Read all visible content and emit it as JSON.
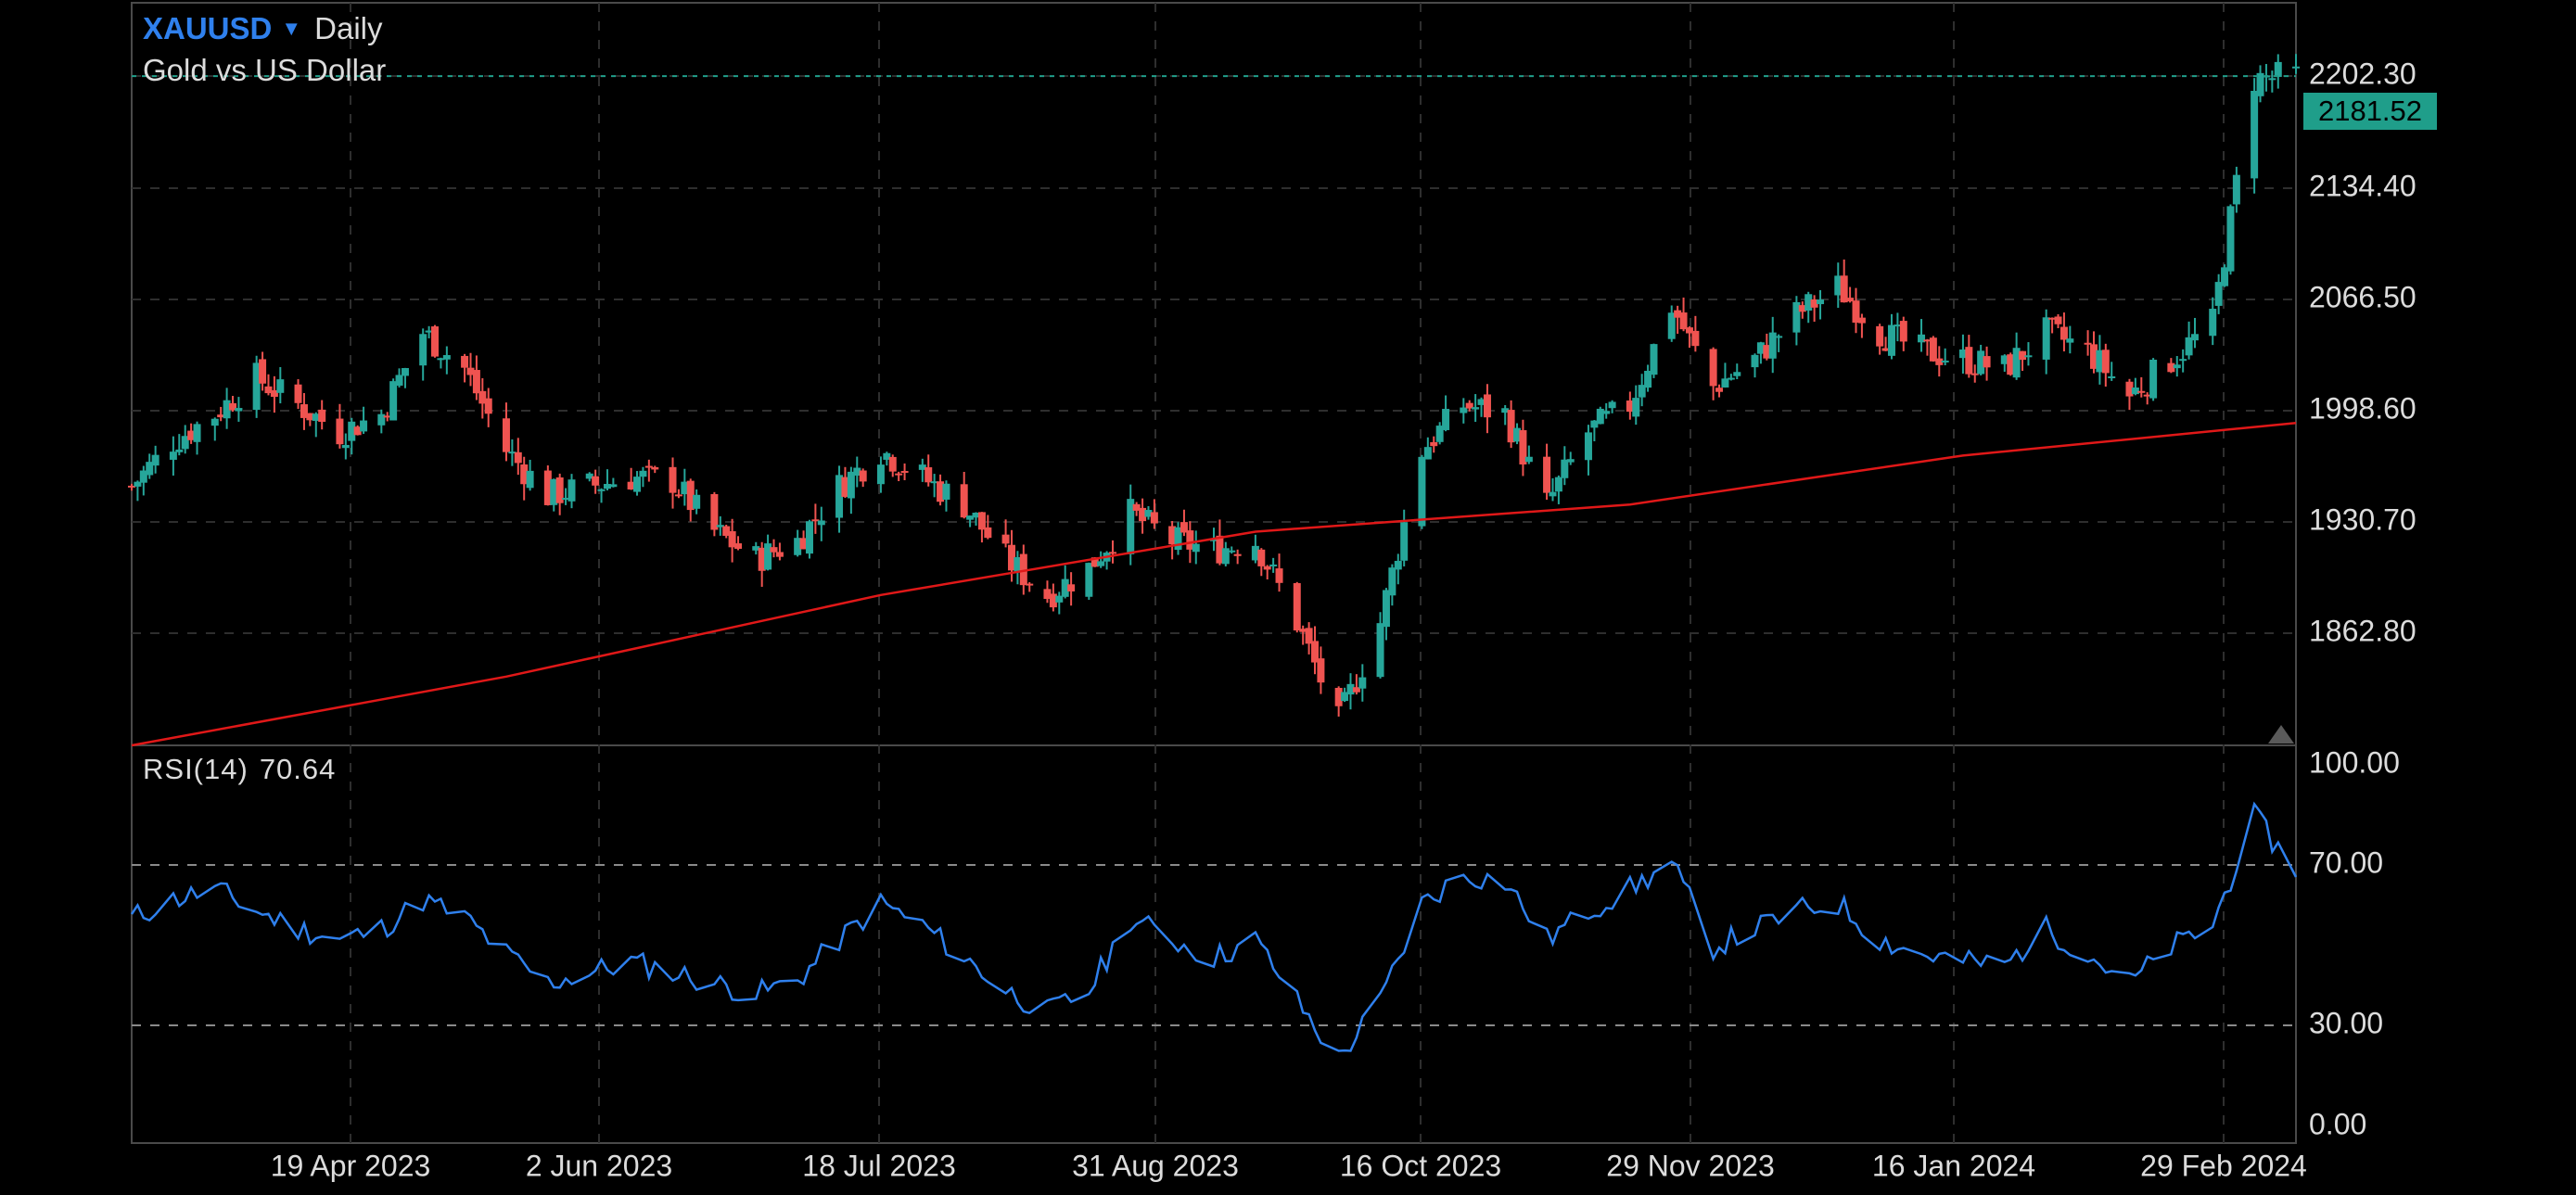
{
  "header": {
    "symbol": "XAUUSD",
    "timeframe": "Daily",
    "description": "Gold vs US Dollar"
  },
  "colors": {
    "background": "#000000",
    "frame": "#4a4a4a",
    "grid": "#2e2e2e",
    "candle_up": "#26a69a",
    "candle_down": "#ef5350",
    "moving_average": "#e01818",
    "rsi_line": "#2f80ed",
    "symbol": "#2f80ed",
    "price_badge": "#1f9e8a",
    "last_price_line": "#1f9e8a"
  },
  "current_price": {
    "label": "2181.52",
    "value": 2181.52
  },
  "chart_data": [
    {
      "type": "candlestick",
      "title": "",
      "xlabel": "",
      "ylabel": "",
      "ylim": [
        1812,
        2222
      ],
      "price_axis_ticks": [
        "2202.30",
        "2134.40",
        "2066.50",
        "1998.60",
        "1930.70",
        "1862.80"
      ],
      "date_axis_ticks": [
        "19 Apr 2023",
        "2 Jun 2023",
        "18 Jul 2023",
        "31 Aug 2023",
        "16 Oct 2023",
        "29 Nov 2023",
        "16 Jan 2024",
        "29 Feb 2024"
      ],
      "grid": true,
      "x_range": [
        "2023-03-13",
        "2024-03-11"
      ],
      "close_path": [
        [
          "2023-03-13",
          1955
        ],
        [
          "2023-03-20",
          1980
        ],
        [
          "2023-03-27",
          1995
        ],
        [
          "2023-04-03",
          2015
        ],
        [
          "2023-04-10",
          2000
        ],
        [
          "2023-04-17",
          1985
        ],
        [
          "2023-04-24",
          1995
        ],
        [
          "2023-05-01",
          2040
        ],
        [
          "2023-05-08",
          2020
        ],
        [
          "2023-05-15",
          1975
        ],
        [
          "2023-05-22",
          1950
        ],
        [
          "2023-05-29",
          1955
        ],
        [
          "2023-06-05",
          1960
        ],
        [
          "2023-06-12",
          1958
        ],
        [
          "2023-06-19",
          1930
        ],
        [
          "2023-06-26",
          1915
        ],
        [
          "2023-07-03",
          1925
        ],
        [
          "2023-07-10",
          1955
        ],
        [
          "2023-07-17",
          1975
        ],
        [
          "2023-07-24",
          1960
        ],
        [
          "2023-07-31",
          1945
        ],
        [
          "2023-08-07",
          1915
        ],
        [
          "2023-08-14",
          1895
        ],
        [
          "2023-08-21",
          1910
        ],
        [
          "2023-08-28",
          1940
        ],
        [
          "2023-09-04",
          1925
        ],
        [
          "2023-09-11",
          1920
        ],
        [
          "2023-09-18",
          1925
        ],
        [
          "2023-09-25",
          1880
        ],
        [
          "2023-10-02",
          1825
        ],
        [
          "2023-10-09",
          1880
        ],
        [
          "2023-10-16",
          1975
        ],
        [
          "2023-10-23",
          2000
        ],
        [
          "2023-10-30",
          1995
        ],
        [
          "2023-11-06",
          1945
        ],
        [
          "2023-11-13",
          1985
        ],
        [
          "2023-11-20",
          2000
        ],
        [
          "2023-11-27",
          2055
        ],
        [
          "2023-12-04",
          2010
        ],
        [
          "2023-12-11",
          2025
        ],
        [
          "2023-12-18",
          2050
        ],
        [
          "2023-12-25",
          2065
        ],
        [
          "2024-01-01",
          2040
        ],
        [
          "2024-01-08",
          2030
        ],
        [
          "2024-01-15",
          2025
        ],
        [
          "2024-01-22",
          2020
        ],
        [
          "2024-01-29",
          2040
        ],
        [
          "2024-02-05",
          2030
        ],
        [
          "2024-02-12",
          2005
        ],
        [
          "2024-02-19",
          2025
        ],
        [
          "2024-02-26",
          2045
        ],
        [
          "2024-03-04",
          2180
        ],
        [
          "2024-03-11",
          2181.52
        ]
      ],
      "series": [
        {
          "type": "line",
          "points": [
            [
              "2023-03-13",
              1812
            ],
            [
              "2023-05-15",
              1850
            ],
            [
              "2023-07-17",
              1895
            ],
            [
              "2023-09-18",
              1930
            ],
            [
              "2023-11-20",
              1945
            ],
            [
              "2024-01-15",
              1972
            ],
            [
              "2024-03-11",
              1990
            ]
          ]
        }
      ]
    },
    {
      "type": "line",
      "title": "",
      "indicator_label": "RSI(14)",
      "indicator_value": "70.64",
      "ylim": [
        0,
        100
      ],
      "axis_ticks": [
        "100.00",
        "70.00",
        "30.00",
        "0.00"
      ],
      "reference_lines": [
        70,
        30
      ],
      "x_range": [
        "2023-03-13",
        "2024-03-11"
      ],
      "points": [
        [
          "2023-03-13",
          58
        ],
        [
          "2023-03-20",
          63
        ],
        [
          "2023-03-27",
          66
        ],
        [
          "2023-04-03",
          60
        ],
        [
          "2023-04-10",
          55
        ],
        [
          "2023-04-17",
          52
        ],
        [
          "2023-04-24",
          55
        ],
        [
          "2023-05-01",
          63
        ],
        [
          "2023-05-08",
          58
        ],
        [
          "2023-05-15",
          48
        ],
        [
          "2023-05-22",
          40
        ],
        [
          "2023-05-29",
          43
        ],
        [
          "2023-06-05",
          46
        ],
        [
          "2023-06-12",
          43
        ],
        [
          "2023-06-19",
          40
        ],
        [
          "2023-06-26",
          37
        ],
        [
          "2023-07-03",
          41
        ],
        [
          "2023-07-10",
          52
        ],
        [
          "2023-07-17",
          62
        ],
        [
          "2023-07-24",
          56
        ],
        [
          "2023-07-31",
          47
        ],
        [
          "2023-08-07",
          38
        ],
        [
          "2023-08-14",
          32
        ],
        [
          "2023-08-21",
          38
        ],
        [
          "2023-08-28",
          58
        ],
        [
          "2023-09-04",
          52
        ],
        [
          "2023-09-11",
          47
        ],
        [
          "2023-09-18",
          52
        ],
        [
          "2023-09-25",
          35
        ],
        [
          "2023-10-02",
          19
        ],
        [
          "2023-10-09",
          35
        ],
        [
          "2023-10-16",
          62
        ],
        [
          "2023-10-23",
          70
        ],
        [
          "2023-10-30",
          68
        ],
        [
          "2023-11-06",
          52
        ],
        [
          "2023-11-13",
          60
        ],
        [
          "2023-11-20",
          66
        ],
        [
          "2023-11-27",
          73
        ],
        [
          "2023-12-04",
          50
        ],
        [
          "2023-12-11",
          55
        ],
        [
          "2023-12-18",
          60
        ],
        [
          "2023-12-25",
          62
        ],
        [
          "2024-01-01",
          52
        ],
        [
          "2024-01-08",
          48
        ],
        [
          "2024-01-15",
          46
        ],
        [
          "2024-01-22",
          45
        ],
        [
          "2024-01-29",
          55
        ],
        [
          "2024-02-05",
          48
        ],
        [
          "2024-02-12",
          40
        ],
        [
          "2024-02-19",
          50
        ],
        [
          "2024-02-26",
          56
        ],
        [
          "2024-03-04",
          86
        ],
        [
          "2024-03-11",
          70.64
        ]
      ]
    }
  ]
}
